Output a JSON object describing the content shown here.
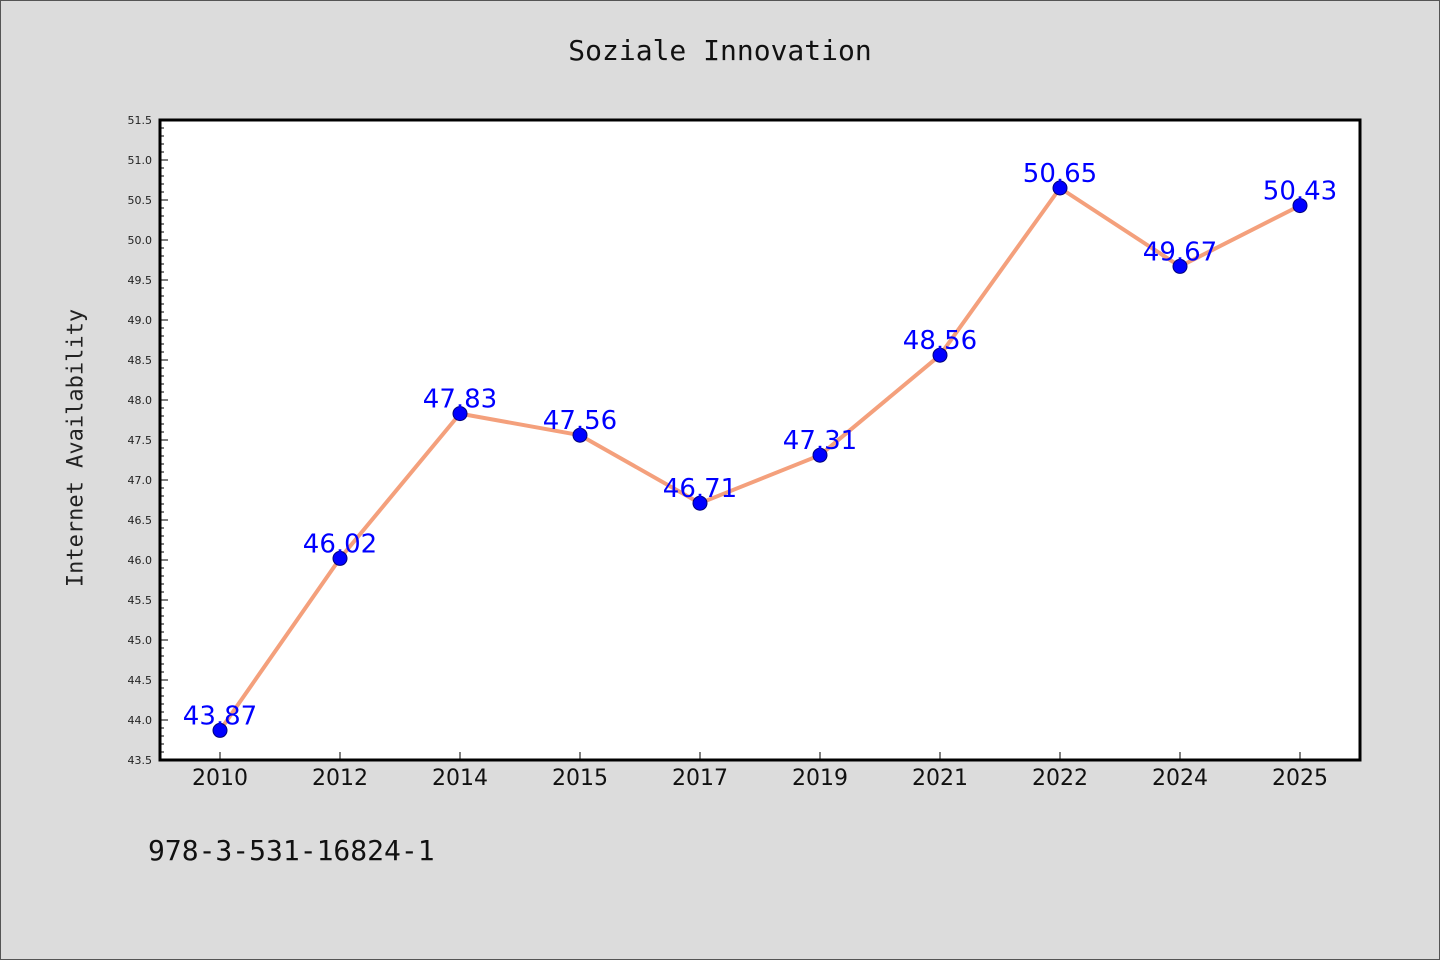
{
  "chart_data": {
    "type": "line",
    "title": "Soziale Innovation",
    "xlabel": "",
    "ylabel": "Internet Availability",
    "categories": [
      "2010",
      "2012",
      "2014",
      "2015",
      "2017",
      "2019",
      "2021",
      "2022",
      "2024",
      "2025"
    ],
    "series": [
      {
        "values": [
          43.87,
          46.02,
          47.83,
          47.56,
          46.71,
          47.31,
          48.56,
          50.65,
          49.67,
          50.43
        ],
        "labels": [
          "43.87",
          "46.02",
          "47.83",
          "47.56",
          "46.71",
          "47.31",
          "48.56",
          "50.65",
          "49.67",
          "50.43"
        ]
      }
    ],
    "ylim": [
      43.5,
      51.5
    ],
    "yticks": [
      "43.5",
      "44.0",
      "44.5",
      "45.0",
      "45.5",
      "46.0",
      "46.5",
      "47.0",
      "47.5",
      "48.0",
      "48.5",
      "49.0",
      "49.5",
      "50.0",
      "50.5",
      "51.0",
      "51.5"
    ],
    "grid": false,
    "line_color": "#f4a07c",
    "marker_color": "#0000ff",
    "label_color": "#0000ff"
  },
  "footer": {
    "isbn": "978-3-531-16824-1"
  }
}
